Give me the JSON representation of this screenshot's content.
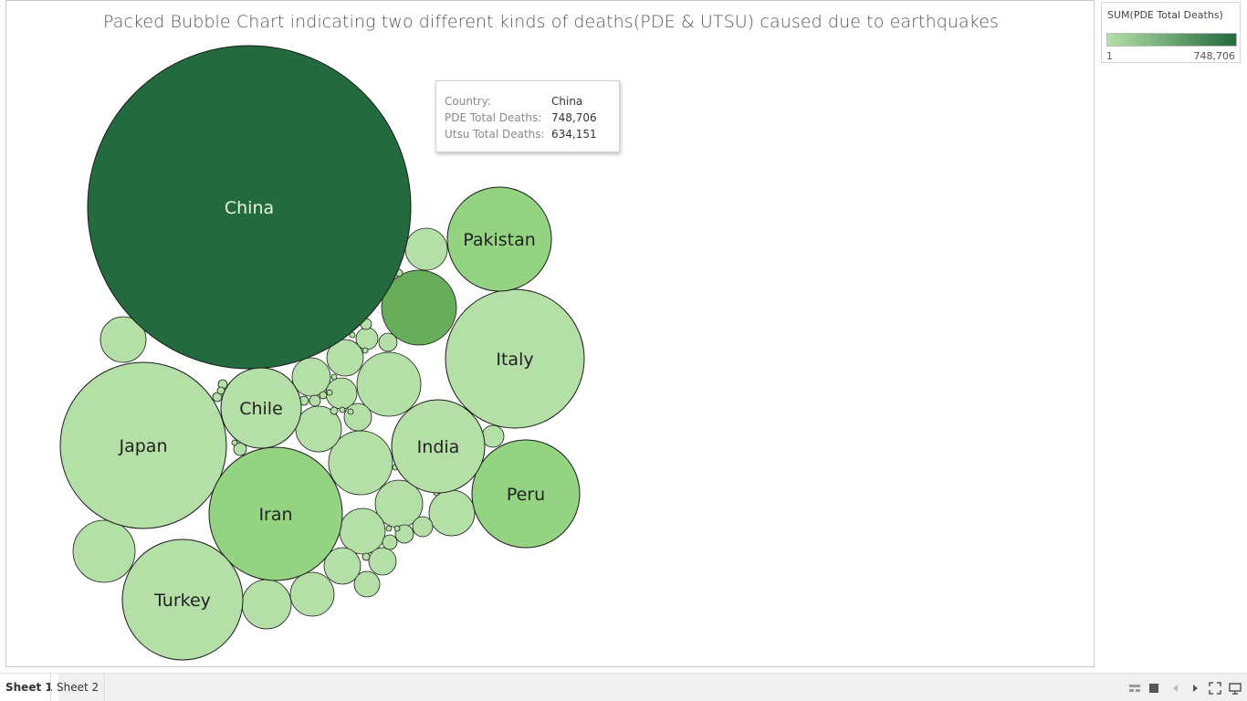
{
  "title": "Packed Bubble Chart indicating two different kinds of deaths(PDE & UTSU) caused due to earthquakes",
  "chart_data": {
    "type": "packed-bubble",
    "title": "Packed Bubble Chart indicating two different kinds of deaths(PDE & UTSU) caused due to earthquakes",
    "size_measure": "SUM(PDE Total Deaths)",
    "color_measure": "SUM(PDE Total Deaths)",
    "color_range": [
      1,
      748706
    ],
    "labeled_bubbles": [
      {
        "label": "China",
        "color": "#236a3e"
      },
      {
        "label": "Japan",
        "color": "#b4e0a7"
      },
      {
        "label": "Iran",
        "color": "#93d381"
      },
      {
        "label": "Turkey",
        "color": "#b4e0a7"
      },
      {
        "label": "Italy",
        "color": "#b4e0a7"
      },
      {
        "label": "Pakistan",
        "color": "#93d381"
      },
      {
        "label": "Peru",
        "color": "#93d381"
      },
      {
        "label": "India",
        "color": "#b4e0a7"
      },
      {
        "label": "Chile",
        "color": "#b4e0a7"
      }
    ]
  },
  "tooltip": {
    "rows": [
      {
        "label": "Country:",
        "value": "China"
      },
      {
        "label": "PDE Total Deaths:",
        "value": "748,706"
      },
      {
        "label": "Utsu Total Deaths:",
        "value": "634,151"
      }
    ]
  },
  "legend": {
    "title": "SUM(PDE Total Deaths)",
    "min": "1",
    "max": "748,706",
    "color_low": "#b4e0a7",
    "color_high": "#236a3e"
  },
  "tabs": [
    {
      "label": "Sheet 1",
      "active": true
    },
    {
      "label": "Sheet 2",
      "active": false
    }
  ],
  "controls": {
    "icons": [
      "layout-icon",
      "stop-icon",
      "prev-icon",
      "next-icon",
      "fullscreen-icon",
      "present-icon"
    ]
  }
}
